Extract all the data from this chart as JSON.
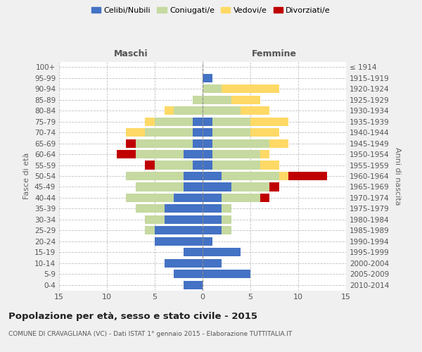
{
  "age_groups": [
    "0-4",
    "5-9",
    "10-14",
    "15-19",
    "20-24",
    "25-29",
    "30-34",
    "35-39",
    "40-44",
    "45-49",
    "50-54",
    "55-59",
    "60-64",
    "65-69",
    "70-74",
    "75-79",
    "80-84",
    "85-89",
    "90-94",
    "95-99",
    "100+"
  ],
  "birth_years": [
    "2010-2014",
    "2005-2009",
    "2000-2004",
    "1995-1999",
    "1990-1994",
    "1985-1989",
    "1980-1984",
    "1975-1979",
    "1970-1974",
    "1965-1969",
    "1960-1964",
    "1955-1959",
    "1950-1954",
    "1945-1949",
    "1940-1944",
    "1935-1939",
    "1930-1934",
    "1925-1929",
    "1920-1924",
    "1915-1919",
    "≤ 1914"
  ],
  "male": {
    "celibi": [
      2,
      3,
      4,
      2,
      5,
      5,
      4,
      4,
      3,
      2,
      2,
      1,
      2,
      1,
      1,
      1,
      0,
      0,
      0,
      0,
      0
    ],
    "coniugati": [
      0,
      0,
      0,
      0,
      0,
      1,
      2,
      3,
      5,
      5,
      6,
      4,
      5,
      6,
      5,
      4,
      3,
      1,
      0,
      0,
      0
    ],
    "vedovi": [
      0,
      0,
      0,
      0,
      0,
      0,
      0,
      0,
      0,
      0,
      0,
      0,
      0,
      0,
      2,
      1,
      1,
      0,
      0,
      0,
      0
    ],
    "divorziati": [
      0,
      0,
      0,
      0,
      0,
      0,
      0,
      0,
      0,
      0,
      0,
      1,
      2,
      1,
      0,
      0,
      0,
      0,
      0,
      0,
      0
    ]
  },
  "female": {
    "nubili": [
      0,
      5,
      2,
      4,
      1,
      2,
      2,
      2,
      2,
      3,
      2,
      1,
      1,
      1,
      1,
      1,
      0,
      0,
      0,
      1,
      0
    ],
    "coniugate": [
      0,
      0,
      0,
      0,
      0,
      1,
      1,
      1,
      4,
      4,
      6,
      5,
      5,
      6,
      4,
      4,
      4,
      3,
      2,
      0,
      0
    ],
    "vedove": [
      0,
      0,
      0,
      0,
      0,
      0,
      0,
      0,
      0,
      0,
      1,
      2,
      1,
      2,
      3,
      4,
      3,
      3,
      6,
      0,
      0
    ],
    "divorziate": [
      0,
      0,
      0,
      0,
      0,
      0,
      0,
      0,
      1,
      1,
      4,
      0,
      0,
      0,
      0,
      0,
      0,
      0,
      0,
      0,
      0
    ]
  },
  "colors": {
    "celibi": "#4472c4",
    "coniugati": "#c5d9a0",
    "vedovi": "#ffd966",
    "divorziati": "#c00000"
  },
  "xlim": 15,
  "title": "Popolazione per età, sesso e stato civile - 2015",
  "subtitle": "COMUNE DI CRAVAGLIANA (VC) - Dati ISTAT 1° gennaio 2015 - Elaborazione TUTTITALIA.IT",
  "ylabel_left": "Fasce di età",
  "ylabel_right": "Anni di nascita",
  "xlabel_male": "Maschi",
  "xlabel_female": "Femmine",
  "bg_color": "#f0f0f0",
  "plot_bg": "#ffffff"
}
